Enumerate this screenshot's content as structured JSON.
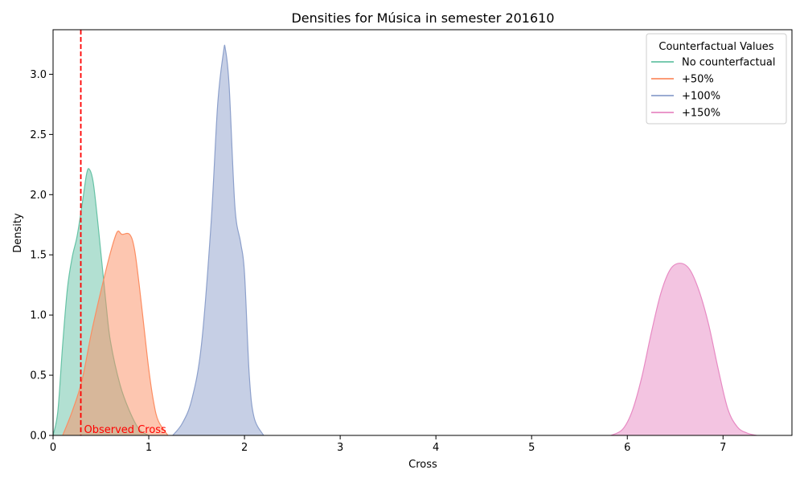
{
  "chart_data": {
    "type": "area",
    "title": "Densities for Música in semester 201610",
    "xlabel": "Cross",
    "ylabel": "Density",
    "xlim": [
      0,
      7.72
    ],
    "ylim": [
      0,
      3.37
    ],
    "x_ticks": [
      0,
      1,
      2,
      3,
      4,
      5,
      6,
      7
    ],
    "y_ticks": [
      0.0,
      0.5,
      1.0,
      1.5,
      2.0,
      2.5,
      3.0
    ],
    "x_tick_labels": [
      "0",
      "1",
      "2",
      "3",
      "4",
      "5",
      "6",
      "7"
    ],
    "y_tick_labels": [
      "0.0",
      "0.5",
      "1.0",
      "1.5",
      "2.0",
      "2.5",
      "3.0"
    ],
    "grid": false,
    "legend": {
      "title": "Counterfactual Values",
      "placement": "top-right"
    },
    "series": [
      {
        "name": "No counterfactual",
        "color": "#66c2a5",
        "x": [
          0.0,
          0.05,
          0.1,
          0.15,
          0.2,
          0.25,
          0.3,
          0.35,
          0.38,
          0.42,
          0.47,
          0.55,
          0.6,
          0.7,
          0.8,
          0.9,
          1.0
        ],
        "y": [
          0.0,
          0.2,
          0.75,
          1.22,
          1.48,
          1.65,
          1.9,
          2.17,
          2.21,
          2.1,
          1.75,
          1.12,
          0.78,
          0.42,
          0.2,
          0.05,
          0.0
        ]
      },
      {
        "name": "+50%",
        "color": "#fc8d62",
        "x": [
          0.1,
          0.2,
          0.3,
          0.4,
          0.5,
          0.6,
          0.67,
          0.72,
          0.8,
          0.85,
          0.9,
          0.95,
          1.0,
          1.05,
          1.1,
          1.2
        ],
        "y": [
          0.0,
          0.2,
          0.45,
          0.85,
          1.2,
          1.52,
          1.69,
          1.67,
          1.67,
          1.55,
          1.25,
          0.9,
          0.55,
          0.28,
          0.12,
          0.0
        ]
      },
      {
        "name": "+100%",
        "color": "#8da0cb",
        "x": [
          1.25,
          1.35,
          1.45,
          1.55,
          1.65,
          1.72,
          1.78,
          1.8,
          1.84,
          1.9,
          1.96,
          2.0,
          2.05,
          2.1,
          2.2
        ],
        "y": [
          0.0,
          0.1,
          0.3,
          0.75,
          1.75,
          2.75,
          3.18,
          3.21,
          2.9,
          1.9,
          1.6,
          1.35,
          0.5,
          0.15,
          0.0
        ]
      },
      {
        "name": "+150%",
        "color": "#e78ac3",
        "x": [
          5.83,
          5.95,
          6.05,
          6.15,
          6.25,
          6.35,
          6.45,
          6.55,
          6.65,
          6.75,
          6.85,
          6.95,
          7.05,
          7.15,
          7.25,
          7.35
        ],
        "y": [
          0.0,
          0.05,
          0.2,
          0.48,
          0.85,
          1.18,
          1.38,
          1.43,
          1.38,
          1.2,
          0.92,
          0.55,
          0.22,
          0.07,
          0.02,
          0.0
        ]
      }
    ],
    "annotations": [
      {
        "type": "vline",
        "x": 0.29,
        "color": "#ff0000",
        "style": "dashed",
        "label": "Observed Cross"
      }
    ]
  }
}
